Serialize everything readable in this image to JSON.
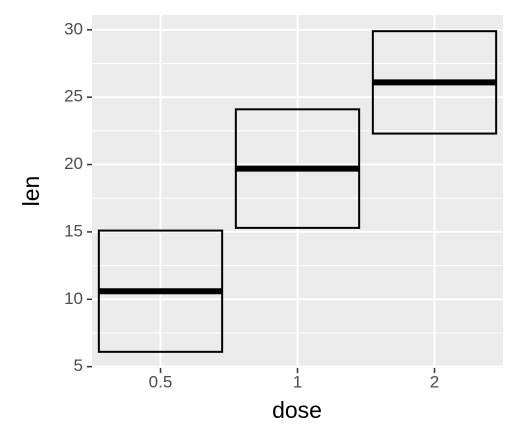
{
  "chart_data": {
    "type": "crossbar",
    "x_label": "dose",
    "y_label": "len",
    "categories": [
      "0.5",
      "1",
      "2"
    ],
    "values": [
      10.6,
      19.7,
      26.1
    ],
    "ymin": [
      6.1,
      15.3,
      22.3
    ],
    "ymax": [
      15.1,
      24.1,
      29.9
    ],
    "color": "#000000",
    "ylim": [
      4.9,
      31.1
    ],
    "yticks": [
      5,
      10,
      15,
      20,
      25,
      30
    ],
    "grid": true
  }
}
